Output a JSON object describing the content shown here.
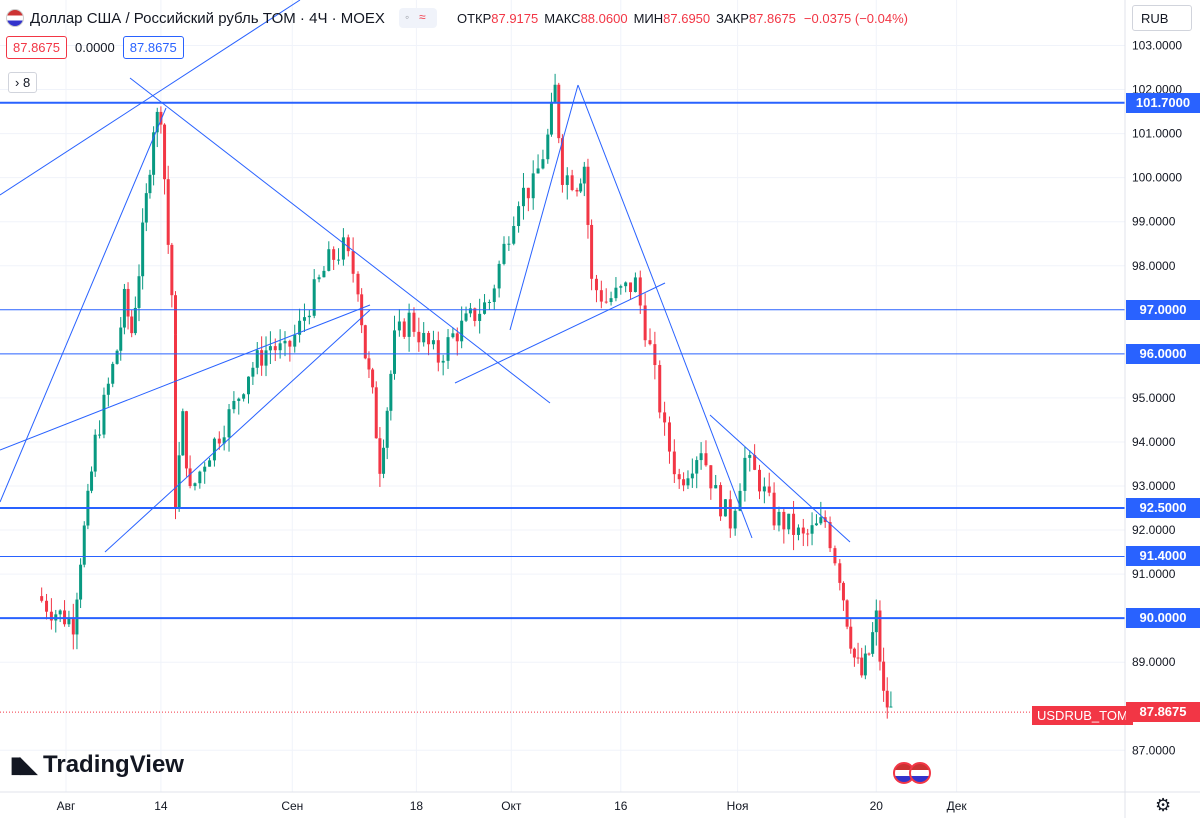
{
  "header": {
    "title": "Доллар США / Российский рубль TOM · 4Ч · MOEX",
    "ohlc": [
      {
        "label": "ОТКР",
        "value": "87.9175"
      },
      {
        "label": "МАКС",
        "value": "88.0600"
      },
      {
        "label": "МИН",
        "value": "87.6950"
      },
      {
        "label": "ЗАКР",
        "value": "87.8675"
      },
      {
        "label": "",
        "value": "−0.0375 (−0.04%)"
      }
    ],
    "bid": "87.8675",
    "spread": "0.0000",
    "ask": "87.8675",
    "indicators_count": "8",
    "currency": "RUB"
  },
  "logo": "TradingView",
  "symbol_tag": "USDRUB_TOM",
  "colors": {
    "up": "#089981",
    "down": "#f23645",
    "line": "#2962ff",
    "text": "#131722"
  },
  "chart_data": {
    "type": "candlestick",
    "symbol": "USDRUB_TOM",
    "timeframe": "4Ч",
    "currency": "RUB",
    "ylim": [
      86.3,
      103.5
    ],
    "y_ticks": [
      "103.0000",
      "102.0000",
      "101.0000",
      "100.0000",
      "99.0000",
      "98.0000",
      "95.0000",
      "94.0000",
      "93.0000",
      "92.0000",
      "91.0000",
      "89.0000",
      "87.0000"
    ],
    "x_ticks": [
      "Авг",
      "14",
      "Сен",
      "18",
      "Окт",
      "16",
      "Ноя",
      "20",
      "Дек"
    ],
    "last_price": 87.8675,
    "levels": [
      {
        "price": 101.7,
        "label": "101.7000",
        "weight": "thick"
      },
      {
        "price": 97.0,
        "label": "97.0000",
        "weight": "thin"
      },
      {
        "price": 96.0,
        "label": "96.0000",
        "weight": "thin"
      },
      {
        "price": 92.5,
        "label": "92.5000",
        "weight": "thick"
      },
      {
        "price": 91.4,
        "label": "91.4000",
        "weight": "thin"
      },
      {
        "price": 90.0,
        "label": "90.0000",
        "weight": "thick"
      }
    ],
    "close_path": [
      {
        "date": "2022-07-28",
        "close": 90.5
      },
      {
        "date": "2022-07-30",
        "close": 90.2
      },
      {
        "date": "2022-08-02",
        "close": 89.9
      },
      {
        "date": "2022-08-03",
        "close": 91.4
      },
      {
        "date": "2022-08-04",
        "close": 92.6
      },
      {
        "date": "2022-08-05",
        "close": 94.0
      },
      {
        "date": "2022-08-08",
        "close": 96.1
      },
      {
        "date": "2022-08-09",
        "close": 97.2
      },
      {
        "date": "2022-08-10",
        "close": 96.5
      },
      {
        "date": "2022-08-11",
        "close": 97.9
      },
      {
        "date": "2022-08-12",
        "close": 99.5
      },
      {
        "date": "2022-08-13",
        "close": 101.2
      },
      {
        "date": "2022-08-14",
        "close": 101.5
      },
      {
        "date": "2022-08-15",
        "close": 98.5
      },
      {
        "date": "2022-08-16",
        "close": 96.2
      },
      {
        "date": "2022-08-16",
        "close": 92.7
      },
      {
        "date": "2022-08-17",
        "close": 94.5
      },
      {
        "date": "2022-08-18",
        "close": 92.8
      },
      {
        "date": "2022-08-20",
        "close": 93.6
      },
      {
        "date": "2022-08-22",
        "close": 94.2
      },
      {
        "date": "2022-08-24",
        "close": 94.8
      },
      {
        "date": "2022-08-26",
        "close": 95.6
      },
      {
        "date": "2022-08-29",
        "close": 96.2
      },
      {
        "date": "2022-08-31",
        "close": 96.0
      },
      {
        "date": "2022-09-02",
        "close": 96.6
      },
      {
        "date": "2022-09-04",
        "close": 97.4
      },
      {
        "date": "2022-09-06",
        "close": 98.1
      },
      {
        "date": "2022-09-08",
        "close": 98.4
      },
      {
        "date": "2022-09-10",
        "close": 97.6
      },
      {
        "date": "2022-09-11",
        "close": 96.0
      },
      {
        "date": "2022-09-12",
        "close": 95.0
      },
      {
        "date": "2022-09-13",
        "close": 93.5
      },
      {
        "date": "2022-09-14",
        "close": 94.8
      },
      {
        "date": "2022-09-15",
        "close": 96.3
      },
      {
        "date": "2022-09-17",
        "close": 96.8
      },
      {
        "date": "2022-09-19",
        "close": 96.3
      },
      {
        "date": "2022-09-21",
        "close": 95.9
      },
      {
        "date": "2022-09-23",
        "close": 96.4
      },
      {
        "date": "2022-09-26",
        "close": 96.9
      },
      {
        "date": "2022-09-28",
        "close": 97.2
      },
      {
        "date": "2022-09-30",
        "close": 98.4
      },
      {
        "date": "2022-10-02",
        "close": 99.6
      },
      {
        "date": "2022-10-04",
        "close": 99.8
      },
      {
        "date": "2022-10-06",
        "close": 100.9
      },
      {
        "date": "2022-10-07",
        "close": 102.0
      },
      {
        "date": "2022-10-08",
        "close": 100.1
      },
      {
        "date": "2022-10-10",
        "close": 99.9
      },
      {
        "date": "2022-10-11",
        "close": 100.3
      },
      {
        "date": "2022-10-12",
        "close": 97.6
      },
      {
        "date": "2022-10-14",
        "close": 97.2
      },
      {
        "date": "2022-10-16",
        "close": 97.4
      },
      {
        "date": "2022-10-18",
        "close": 97.6
      },
      {
        "date": "2022-10-20",
        "close": 96.1
      },
      {
        "date": "2022-10-22",
        "close": 94.2
      },
      {
        "date": "2022-10-24",
        "close": 93.1
      },
      {
        "date": "2022-10-27",
        "close": 93.9
      },
      {
        "date": "2022-10-29",
        "close": 92.8
      },
      {
        "date": "2022-10-31",
        "close": 92.2
      },
      {
        "date": "2022-11-02",
        "close": 93.6
      },
      {
        "date": "2022-11-04",
        "close": 93.1
      },
      {
        "date": "2022-11-06",
        "close": 92.3
      },
      {
        "date": "2022-11-08",
        "close": 92.1
      },
      {
        "date": "2022-11-10",
        "close": 91.8
      },
      {
        "date": "2022-11-13",
        "close": 92.2
      },
      {
        "date": "2022-11-15",
        "close": 91.0
      },
      {
        "date": "2022-11-16",
        "close": 90.0
      },
      {
        "date": "2022-11-17",
        "close": 89.1
      },
      {
        "date": "2022-11-18",
        "close": 88.7
      },
      {
        "date": "2022-11-19",
        "close": 89.2
      },
      {
        "date": "2022-11-20",
        "close": 90.0
      },
      {
        "date": "2022-11-21",
        "close": 88.2
      },
      {
        "date": "2022-11-22",
        "close": 87.87
      }
    ]
  }
}
